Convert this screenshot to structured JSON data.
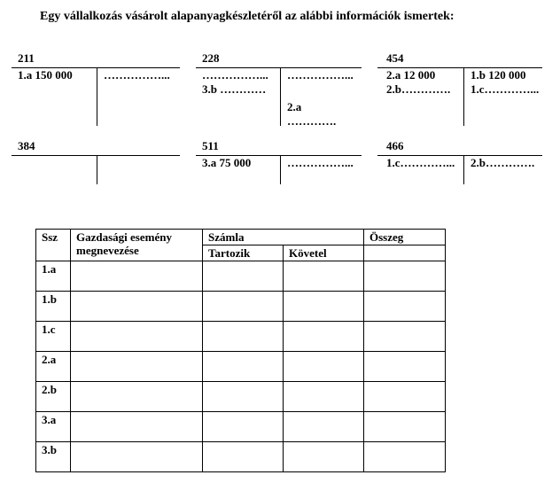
{
  "title": "Egy vállalkozás vásárolt alapanyagkészletéről  az alábbi információk ismertek:",
  "accounts": [
    {
      "number": "211",
      "debit": [
        "1.a 150 000"
      ],
      "credit": [
        "……………..."
      ]
    },
    {
      "number": "228",
      "debit": [
        "……………...",
        "3.b …………"
      ],
      "credit": [
        "……………...",
        "2.a",
        "…………."
      ]
    },
    {
      "number": "454",
      "debit": [
        "2.a 12 000",
        "2.b…………."
      ],
      "credit": [
        "1.b 120 000",
        "1.c…………..."
      ]
    },
    {
      "number": "384",
      "debit": [],
      "credit": []
    },
    {
      "number": "511",
      "debit": [
        "3.a 75 000"
      ],
      "credit": [
        "……………..."
      ]
    },
    {
      "number": "466",
      "debit": [
        "1.c…………..."
      ],
      "credit": [
        "2.b…………."
      ]
    }
  ],
  "table": {
    "headers": {
      "ssz": "Ssz",
      "event": "Gazdasági esemény megnevezése",
      "account": "Számla",
      "debit": "Tartozik",
      "credit": "Követel",
      "amount": "Összeg"
    },
    "rows": [
      "1.a",
      "1.b",
      "1.c",
      "2.a",
      "2.b",
      "3.a",
      "3.b"
    ]
  }
}
